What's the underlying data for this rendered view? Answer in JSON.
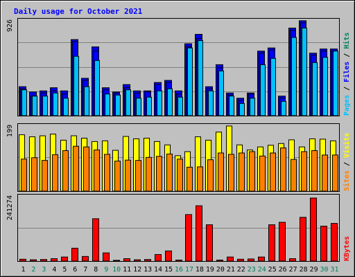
{
  "chart_data": {
    "type": "bar",
    "title": "Daily usage for October 2021",
    "categories": [
      "1",
      "2",
      "3",
      "4",
      "5",
      "6",
      "7",
      "8",
      "9",
      "10",
      "11",
      "12",
      "13",
      "14",
      "15",
      "16",
      "17",
      "18",
      "19",
      "20",
      "21",
      "22",
      "23",
      "24",
      "25",
      "26",
      "27",
      "28",
      "29",
      "30",
      "31"
    ],
    "weekend_days": [
      "2",
      "3",
      "9",
      "10",
      "16",
      "17",
      "23",
      "24",
      "30",
      "31"
    ],
    "colors": {
      "title": "#0000ff",
      "panel_bg": "#c0c0c0",
      "border": "#000000",
      "gridline": "#808080",
      "weekday_label": "#000000",
      "weekend_label": "#00805c",
      "hits": "#00805c",
      "hits_bar": "#0000e6",
      "files": "#0000ff",
      "pages": "#00c0ff",
      "visits": "#ffff00",
      "sites": "#ff8000",
      "kbytes": "#ff0000"
    },
    "panels": [
      {
        "id": "hits-files-pages",
        "tick_label": "926",
        "ymax": 926,
        "legend": [
          "Pages",
          "Files",
          "Hits"
        ],
        "legend_separator": " / ",
        "series": [
          {
            "name": "Hits",
            "values": [
              280,
              230,
              240,
              270,
              240,
              730,
              360,
              660,
              270,
              230,
              300,
              240,
              240,
              320,
              340,
              240,
              690,
              780,
              280,
              490,
              220,
              170,
              220,
              620,
              650,
              190,
              840,
              910,
              600,
              640,
              640
            ]
          },
          {
            "name": "Files",
            "values": [
              260,
              190,
              220,
              240,
              210,
              710,
              340,
              620,
              250,
              220,
              270,
              220,
              230,
              300,
              320,
              210,
              660,
              740,
              260,
              460,
              200,
              150,
              210,
              600,
              630,
              170,
              820,
              890,
              580,
              620,
              620
            ]
          },
          {
            "name": "Pages",
            "values": [
              250,
              190,
              190,
              220,
              170,
              570,
              280,
              530,
              210,
              200,
              250,
              170,
              180,
              240,
              260,
              180,
              650,
              720,
              240,
              430,
              190,
              120,
              170,
              490,
              550,
              140,
              750,
              840,
              510,
              560,
              620
            ]
          }
        ]
      },
      {
        "id": "visits-sites",
        "tick_label": "199",
        "ymax": 199,
        "legend": [
          "Sites",
          "Visits"
        ],
        "legend_separator": " / ",
        "series": [
          {
            "name": "Visits",
            "values": [
              168,
              162,
              165,
              170,
              152,
              165,
              158,
              148,
              150,
              122,
              163,
              156,
              158,
              148,
              138,
              106,
              118,
              162,
              152,
              176,
              194,
              138,
              123,
              132,
              137,
              142,
              153,
              132,
              156,
              155,
              150
            ]
          },
          {
            "name": "Sites",
            "values": [
              96,
              100,
              92,
              109,
              121,
              134,
              132,
              123,
              110,
              90,
              93,
              92,
              101,
              104,
              111,
              96,
              72,
              73,
              94,
              114,
              110,
              114,
              118,
              105,
              114,
              129,
              95,
              118,
              121,
              108,
              108
            ]
          }
        ]
      },
      {
        "id": "kbytes",
        "tick_label": "241274",
        "ymax": 241274,
        "legend": [
          "KBytes"
        ],
        "legend_separator": "",
        "series": [
          {
            "name": "KBytes",
            "values": [
              8000,
              6000,
              7000,
              10000,
              16000,
              48000,
              18000,
              155000,
              31000,
              4000,
              10000,
              6000,
              7000,
              25000,
              38000,
              5000,
              170000,
              202000,
              133000,
              5000,
              16000,
              8000,
              9000,
              16000,
              133000,
              142000,
              10000,
              160000,
              230000,
              128000,
              138000
            ]
          }
        ]
      }
    ]
  }
}
